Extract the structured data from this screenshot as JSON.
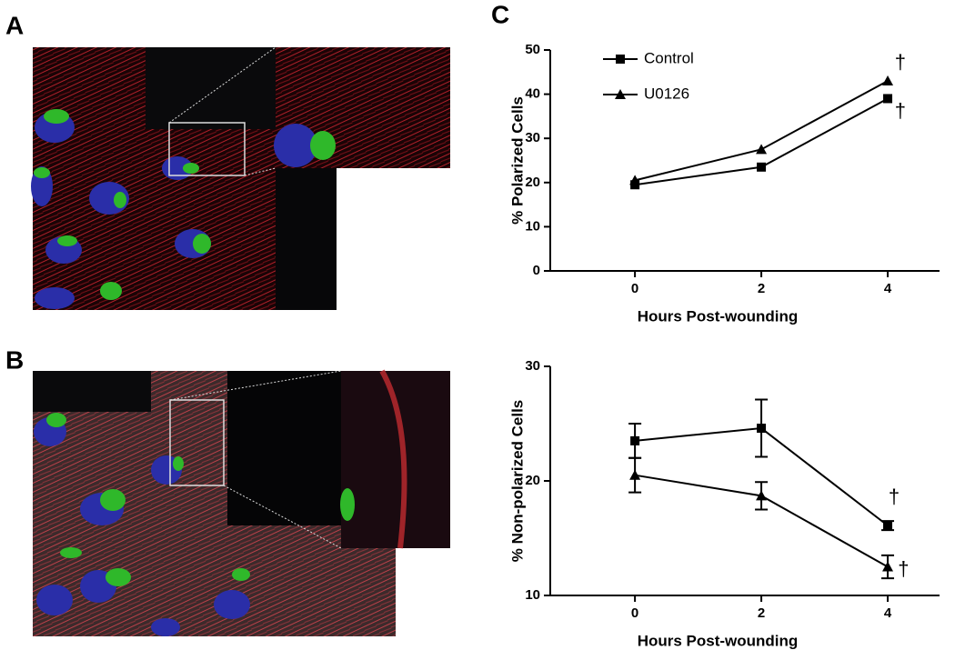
{
  "panel_labels": [
    "A",
    "B",
    "C"
  ],
  "chart_data": [
    {
      "type": "line",
      "x_label": "Hours Post-wounding",
      "y_label": "% Polarized Cells",
      "xlim": [
        -1.34,
        4.82
      ],
      "xticks": [
        0,
        2,
        4
      ],
      "ylim": [
        0,
        50
      ],
      "yticks": [
        0,
        10,
        20,
        30,
        40,
        50
      ],
      "legend": "upper left",
      "series": [
        {
          "name": "Control",
          "color": "#000000",
          "marker": "square",
          "x": [
            0,
            2,
            4
          ],
          "values": [
            19.5,
            23.5,
            39
          ]
        },
        {
          "name": "U0126",
          "color": "#000000",
          "marker": "triangle",
          "x": [
            0,
            2,
            4
          ],
          "values": [
            20.5,
            27.5,
            43
          ]
        }
      ],
      "annotations": [
        {
          "text": "†",
          "x": 4.2,
          "y": 47
        },
        {
          "text": "†",
          "x": 4.2,
          "y": 36
        }
      ]
    },
    {
      "type": "line",
      "x_label": "Hours Post-wounding",
      "y_label": "% Non-polarized Cells",
      "xlim": [
        -1.34,
        4.82
      ],
      "xticks": [
        0,
        2,
        4
      ],
      "ylim": [
        10,
        30
      ],
      "yticks": [
        10,
        20,
        30
      ],
      "series": [
        {
          "name": "Control",
          "color": "#000000",
          "marker": "square",
          "x": [
            0,
            2,
            4
          ],
          "values": [
            23.5,
            24.6,
            16.1
          ],
          "errors": [
            1.5,
            2.5,
            0.4
          ]
        },
        {
          "name": "U0126",
          "color": "#000000",
          "marker": "triangle",
          "x": [
            0,
            2,
            4
          ],
          "values": [
            20.5,
            18.7,
            12.5
          ],
          "errors": [
            1.5,
            1.2,
            1.0
          ]
        }
      ],
      "annotations": [
        {
          "text": "†",
          "x": 4.1,
          "y": 18.5
        },
        {
          "text": "†",
          "x": 4.25,
          "y": 12.2
        }
      ]
    }
  ]
}
